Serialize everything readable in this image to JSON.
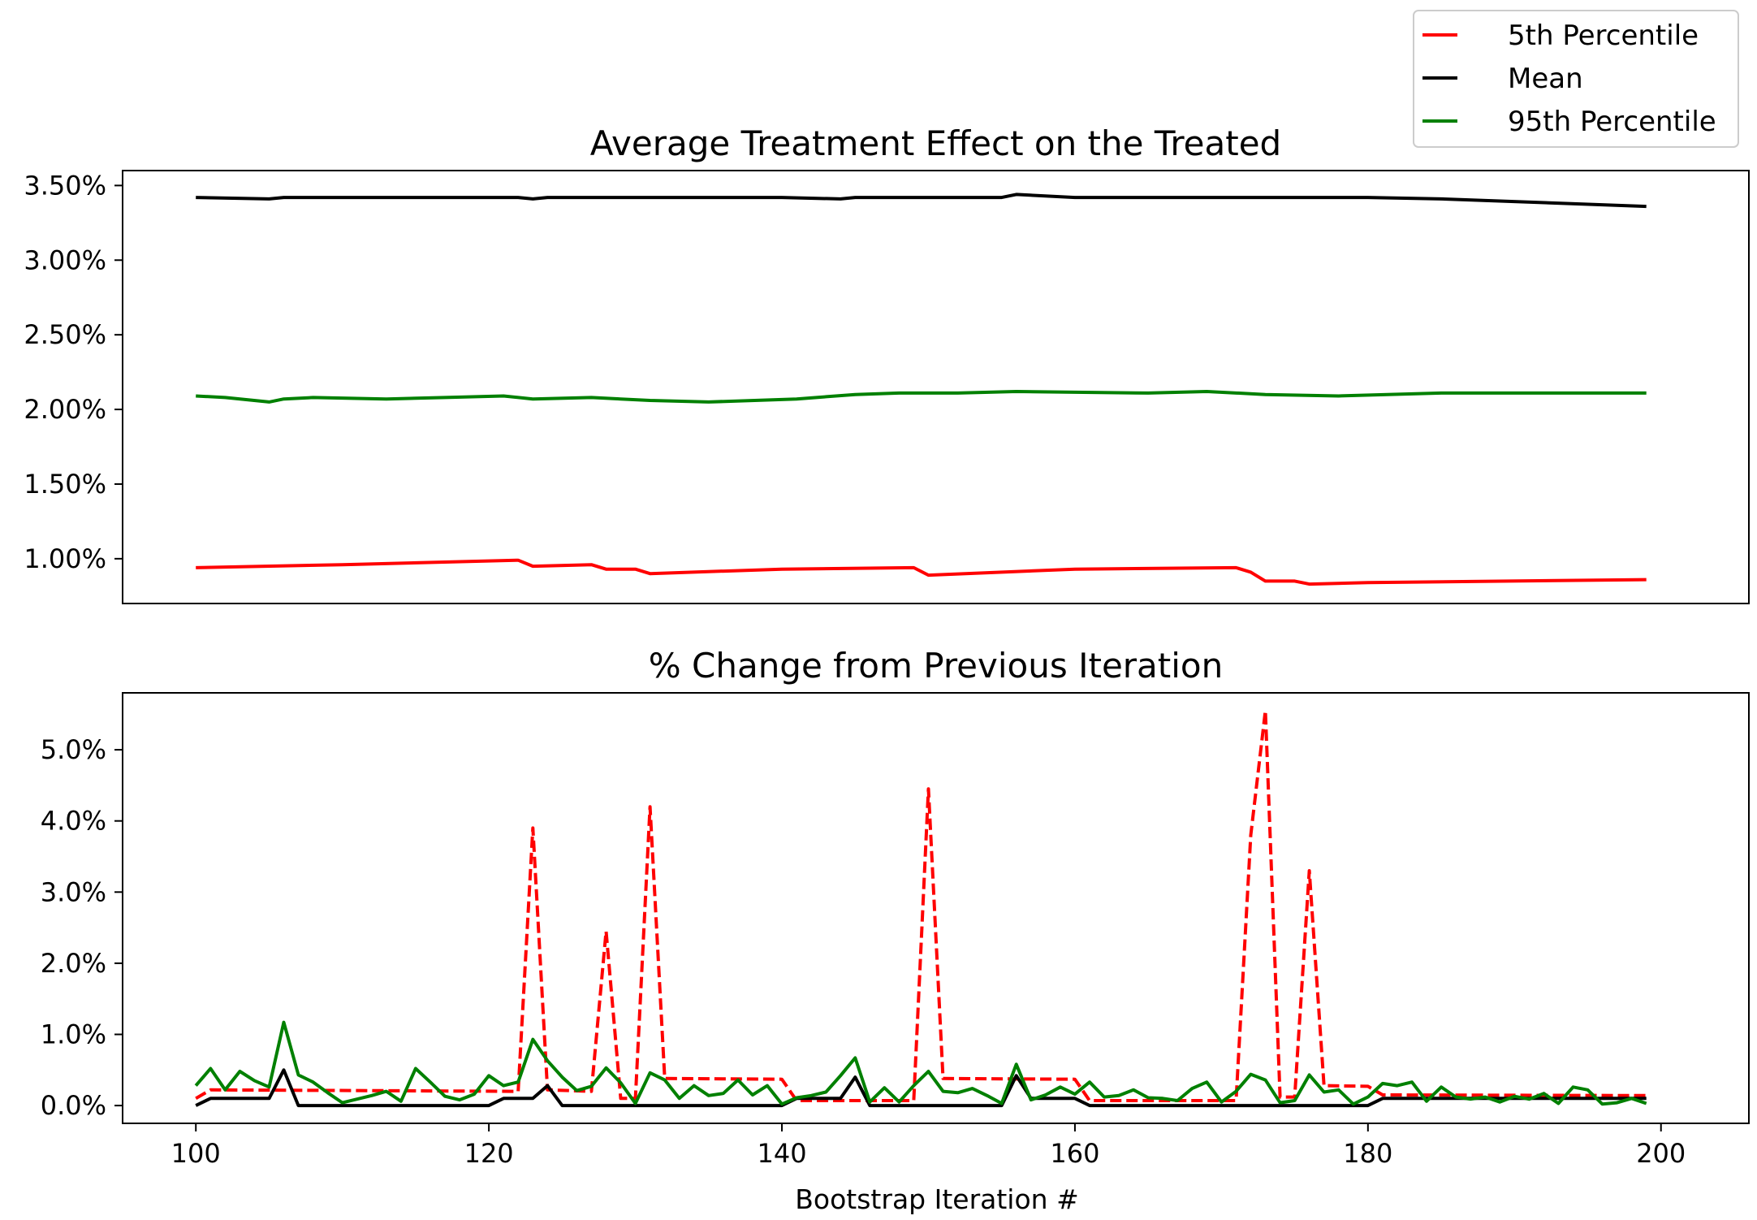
{
  "legend": {
    "position": "top-right",
    "items": [
      {
        "label": "5th Percentile",
        "color": "#ff0000"
      },
      {
        "label": "Mean",
        "color": "#000000"
      },
      {
        "label": "95th Percentile",
        "color": "#008000"
      }
    ]
  },
  "xlabel": "Bootstrap Iteration #",
  "chart_data": [
    {
      "type": "line",
      "title": "Average Treatment Effect on the Treated",
      "xlabel": "",
      "ylabel": "",
      "xlim": [
        95,
        206
      ],
      "ylim": [
        0.7,
        3.6
      ],
      "yticks": [
        1.0,
        1.5,
        2.0,
        2.5,
        3.0,
        3.5
      ],
      "ytick_labels": [
        "1.00%",
        "1.50%",
        "2.00%",
        "2.50%",
        "3.00%",
        "3.50%"
      ],
      "x_ticks_shown": false,
      "grid": false,
      "series": [
        {
          "name": "5th Percentile",
          "color": "#ff0000",
          "style": "solid",
          "points": [
            [
              100,
              0.94
            ],
            [
              110,
              0.96
            ],
            [
              122,
              0.99
            ],
            [
              123,
              0.95
            ],
            [
              127,
              0.96
            ],
            [
              128,
              0.93
            ],
            [
              130,
              0.93
            ],
            [
              131,
              0.9
            ],
            [
              140,
              0.93
            ],
            [
              149,
              0.94
            ],
            [
              150,
              0.89
            ],
            [
              160,
              0.93
            ],
            [
              171,
              0.94
            ],
            [
              172,
              0.91
            ],
            [
              173,
              0.85
            ],
            [
              175,
              0.85
            ],
            [
              176,
              0.83
            ],
            [
              180,
              0.84
            ],
            [
              199,
              0.86
            ]
          ]
        },
        {
          "name": "Mean",
          "color": "#000000",
          "style": "solid",
          "points": [
            [
              100,
              3.42
            ],
            [
              105,
              3.41
            ],
            [
              106,
              3.42
            ],
            [
              122,
              3.42
            ],
            [
              123,
              3.41
            ],
            [
              124,
              3.42
            ],
            [
              140,
              3.42
            ],
            [
              144,
              3.41
            ],
            [
              145,
              3.42
            ],
            [
              155,
              3.42
            ],
            [
              156,
              3.44
            ],
            [
              160,
              3.42
            ],
            [
              180,
              3.42
            ],
            [
              185,
              3.41
            ],
            [
              199,
              3.36
            ]
          ]
        },
        {
          "name": "95th Percentile",
          "color": "#008000",
          "style": "solid",
          "points": [
            [
              100,
              2.09
            ],
            [
              102,
              2.08
            ],
            [
              105,
              2.05
            ],
            [
              106,
              2.07
            ],
            [
              108,
              2.08
            ],
            [
              113,
              2.07
            ],
            [
              117,
              2.08
            ],
            [
              121,
              2.09
            ],
            [
              123,
              2.07
            ],
            [
              127,
              2.08
            ],
            [
              131,
              2.06
            ],
            [
              135,
              2.05
            ],
            [
              141,
              2.07
            ],
            [
              145,
              2.1
            ],
            [
              148,
              2.11
            ],
            [
              152,
              2.11
            ],
            [
              156,
              2.12
            ],
            [
              165,
              2.11
            ],
            [
              169,
              2.12
            ],
            [
              173,
              2.1
            ],
            [
              178,
              2.09
            ],
            [
              185,
              2.11
            ],
            [
              190,
              2.11
            ],
            [
              199,
              2.11
            ]
          ]
        }
      ]
    },
    {
      "type": "line",
      "title": "% Change from Previous Iteration",
      "xlabel": "Bootstrap Iteration #",
      "ylabel": "",
      "xlim": [
        95,
        206
      ],
      "ylim": [
        -0.25,
        5.8
      ],
      "xticks": [
        100,
        120,
        140,
        160,
        180,
        200
      ],
      "xtick_labels": [
        "100",
        "120",
        "140",
        "160",
        "180",
        "200"
      ],
      "yticks": [
        0.0,
        1.0,
        2.0,
        3.0,
        4.0,
        5.0
      ],
      "ytick_labels": [
        "0.0%",
        "1.0%",
        "2.0%",
        "3.0%",
        "4.0%",
        "5.0%"
      ],
      "grid": false,
      "series": [
        {
          "name": "5th Percentile",
          "color": "#ff0000",
          "style": "dashed",
          "points": [
            [
              100,
              0.1
            ],
            [
              101,
              0.22
            ],
            [
              122,
              0.2
            ],
            [
              123,
              3.9
            ],
            [
              124,
              0.22
            ],
            [
              127,
              0.2
            ],
            [
              128,
              2.45
            ],
            [
              129,
              0.1
            ],
            [
              130,
              0.1
            ],
            [
              131,
              4.2
            ],
            [
              132,
              0.38
            ],
            [
              140,
              0.37
            ],
            [
              141,
              0.07
            ],
            [
              149,
              0.07
            ],
            [
              150,
              4.45
            ],
            [
              151,
              0.38
            ],
            [
              160,
              0.37
            ],
            [
              161,
              0.07
            ],
            [
              171,
              0.07
            ],
            [
              172,
              3.8
            ],
            [
              173,
              5.55
            ],
            [
              174,
              0.12
            ],
            [
              175,
              0.12
            ],
            [
              176,
              3.3
            ],
            [
              177,
              0.28
            ],
            [
              180,
              0.27
            ],
            [
              181,
              0.15
            ],
            [
              199,
              0.14
            ]
          ]
        },
        {
          "name": "Mean",
          "color": "#000000",
          "style": "solid",
          "points": [
            [
              100,
              0.0
            ],
            [
              101,
              0.1
            ],
            [
              105,
              0.1
            ],
            [
              106,
              0.5
            ],
            [
              107,
              0.0
            ],
            [
              120,
              0.0
            ],
            [
              121,
              0.1
            ],
            [
              123,
              0.1
            ],
            [
              124,
              0.28
            ],
            [
              125,
              0.0
            ],
            [
              140,
              0.0
            ],
            [
              141,
              0.1
            ],
            [
              144,
              0.1
            ],
            [
              145,
              0.4
            ],
            [
              146,
              0.0
            ],
            [
              155,
              0.0
            ],
            [
              156,
              0.42
            ],
            [
              157,
              0.1
            ],
            [
              160,
              0.1
            ],
            [
              161,
              0.0
            ],
            [
              180,
              0.0
            ],
            [
              181,
              0.1
            ],
            [
              199,
              0.1
            ]
          ]
        },
        {
          "name": "95th Percentile",
          "color": "#008000",
          "style": "solid",
          "points": [
            [
              100,
              0.28
            ],
            [
              101,
              0.52
            ],
            [
              102,
              0.22
            ],
            [
              103,
              0.48
            ],
            [
              104,
              0.35
            ],
            [
              105,
              0.26
            ],
            [
              106,
              1.17
            ],
            [
              107,
              0.43
            ],
            [
              108,
              0.33
            ],
            [
              109,
              0.18
            ],
            [
              110,
              0.04
            ],
            [
              111,
              0.09
            ],
            [
              112,
              0.14
            ],
            [
              113,
              0.2
            ],
            [
              114,
              0.06
            ],
            [
              115,
              0.52
            ],
            [
              116,
              0.33
            ],
            [
              117,
              0.13
            ],
            [
              118,
              0.08
            ],
            [
              119,
              0.16
            ],
            [
              120,
              0.42
            ],
            [
              121,
              0.28
            ],
            [
              122,
              0.33
            ],
            [
              123,
              0.93
            ],
            [
              124,
              0.63
            ],
            [
              125,
              0.4
            ],
            [
              126,
              0.21
            ],
            [
              127,
              0.27
            ],
            [
              128,
              0.53
            ],
            [
              129,
              0.32
            ],
            [
              130,
              0.03
            ],
            [
              131,
              0.46
            ],
            [
              132,
              0.36
            ],
            [
              133,
              0.1
            ],
            [
              134,
              0.28
            ],
            [
              135,
              0.14
            ],
            [
              136,
              0.17
            ],
            [
              137,
              0.36
            ],
            [
              138,
              0.15
            ],
            [
              139,
              0.28
            ],
            [
              140,
              0.02
            ],
            [
              141,
              0.11
            ],
            [
              142,
              0.14
            ],
            [
              143,
              0.19
            ],
            [
              144,
              0.42
            ],
            [
              145,
              0.67
            ],
            [
              146,
              0.05
            ],
            [
              147,
              0.25
            ],
            [
              148,
              0.05
            ],
            [
              149,
              0.28
            ],
            [
              150,
              0.48
            ],
            [
              151,
              0.2
            ],
            [
              152,
              0.18
            ],
            [
              153,
              0.24
            ],
            [
              154,
              0.14
            ],
            [
              155,
              0.03
            ],
            [
              156,
              0.58
            ],
            [
              157,
              0.08
            ],
            [
              158,
              0.15
            ],
            [
              159,
              0.26
            ],
            [
              160,
              0.16
            ],
            [
              161,
              0.33
            ],
            [
              162,
              0.12
            ],
            [
              163,
              0.14
            ],
            [
              164,
              0.22
            ],
            [
              165,
              0.11
            ],
            [
              166,
              0.1
            ],
            [
              167,
              0.07
            ],
            [
              168,
              0.24
            ],
            [
              169,
              0.33
            ],
            [
              170,
              0.05
            ],
            [
              171,
              0.2
            ],
            [
              172,
              0.44
            ],
            [
              173,
              0.36
            ],
            [
              174,
              0.04
            ],
            [
              175,
              0.07
            ],
            [
              176,
              0.43
            ],
            [
              177,
              0.19
            ],
            [
              178,
              0.22
            ],
            [
              179,
              0.02
            ],
            [
              180,
              0.12
            ],
            [
              181,
              0.31
            ],
            [
              182,
              0.28
            ],
            [
              183,
              0.33
            ],
            [
              184,
              0.06
            ],
            [
              185,
              0.26
            ],
            [
              186,
              0.12
            ],
            [
              187,
              0.09
            ],
            [
              188,
              0.12
            ],
            [
              189,
              0.05
            ],
            [
              190,
              0.13
            ],
            [
              191,
              0.09
            ],
            [
              192,
              0.17
            ],
            [
              193,
              0.03
            ],
            [
              194,
              0.26
            ],
            [
              195,
              0.22
            ],
            [
              196,
              0.02
            ],
            [
              197,
              0.04
            ],
            [
              198,
              0.1
            ],
            [
              199,
              0.03
            ]
          ]
        }
      ]
    }
  ]
}
